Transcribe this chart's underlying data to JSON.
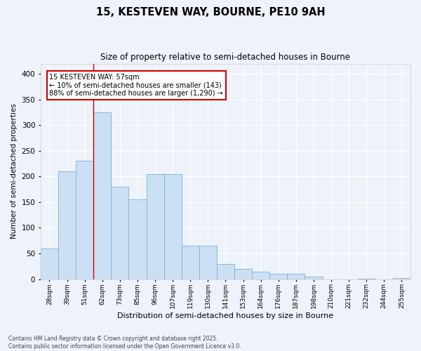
{
  "title1": "15, KESTEVEN WAY, BOURNE, PE10 9AH",
  "title2": "Size of property relative to semi-detached houses in Bourne",
  "xlabel": "Distribution of semi-detached houses by size in Bourne",
  "ylabel": "Number of semi-detached properties",
  "categories": [
    "28sqm",
    "39sqm",
    "51sqm",
    "62sqm",
    "73sqm",
    "85sqm",
    "96sqm",
    "107sqm",
    "119sqm",
    "130sqm",
    "141sqm",
    "153sqm",
    "164sqm",
    "176sqm",
    "187sqm",
    "198sqm",
    "210sqm",
    "221sqm",
    "232sqm",
    "244sqm",
    "255sqm"
  ],
  "values": [
    60,
    210,
    230,
    325,
    180,
    155,
    205,
    205,
    65,
    65,
    30,
    20,
    15,
    10,
    10,
    5,
    0,
    0,
    1,
    0,
    2
  ],
  "bar_color": "#cce0f5",
  "bar_edge_color": "#7bafd4",
  "red_line_index": 2.5,
  "annotation_text": "15 KESTEVEN WAY: 57sqm\n← 10% of semi-detached houses are smaller (143)\n88% of semi-detached houses are larger (1,290) →",
  "annotation_box_color": "#ffffff",
  "annotation_box_edge_color": "#cc0000",
  "ylim": [
    0,
    420
  ],
  "yticks": [
    0,
    50,
    100,
    150,
    200,
    250,
    300,
    350,
    400
  ],
  "background_color": "#eef2fa",
  "grid_color": "#ffffff",
  "footer1": "Contains HM Land Registry data © Crown copyright and database right 2025.",
  "footer2": "Contains public sector information licensed under the Open Government Licence v3.0."
}
